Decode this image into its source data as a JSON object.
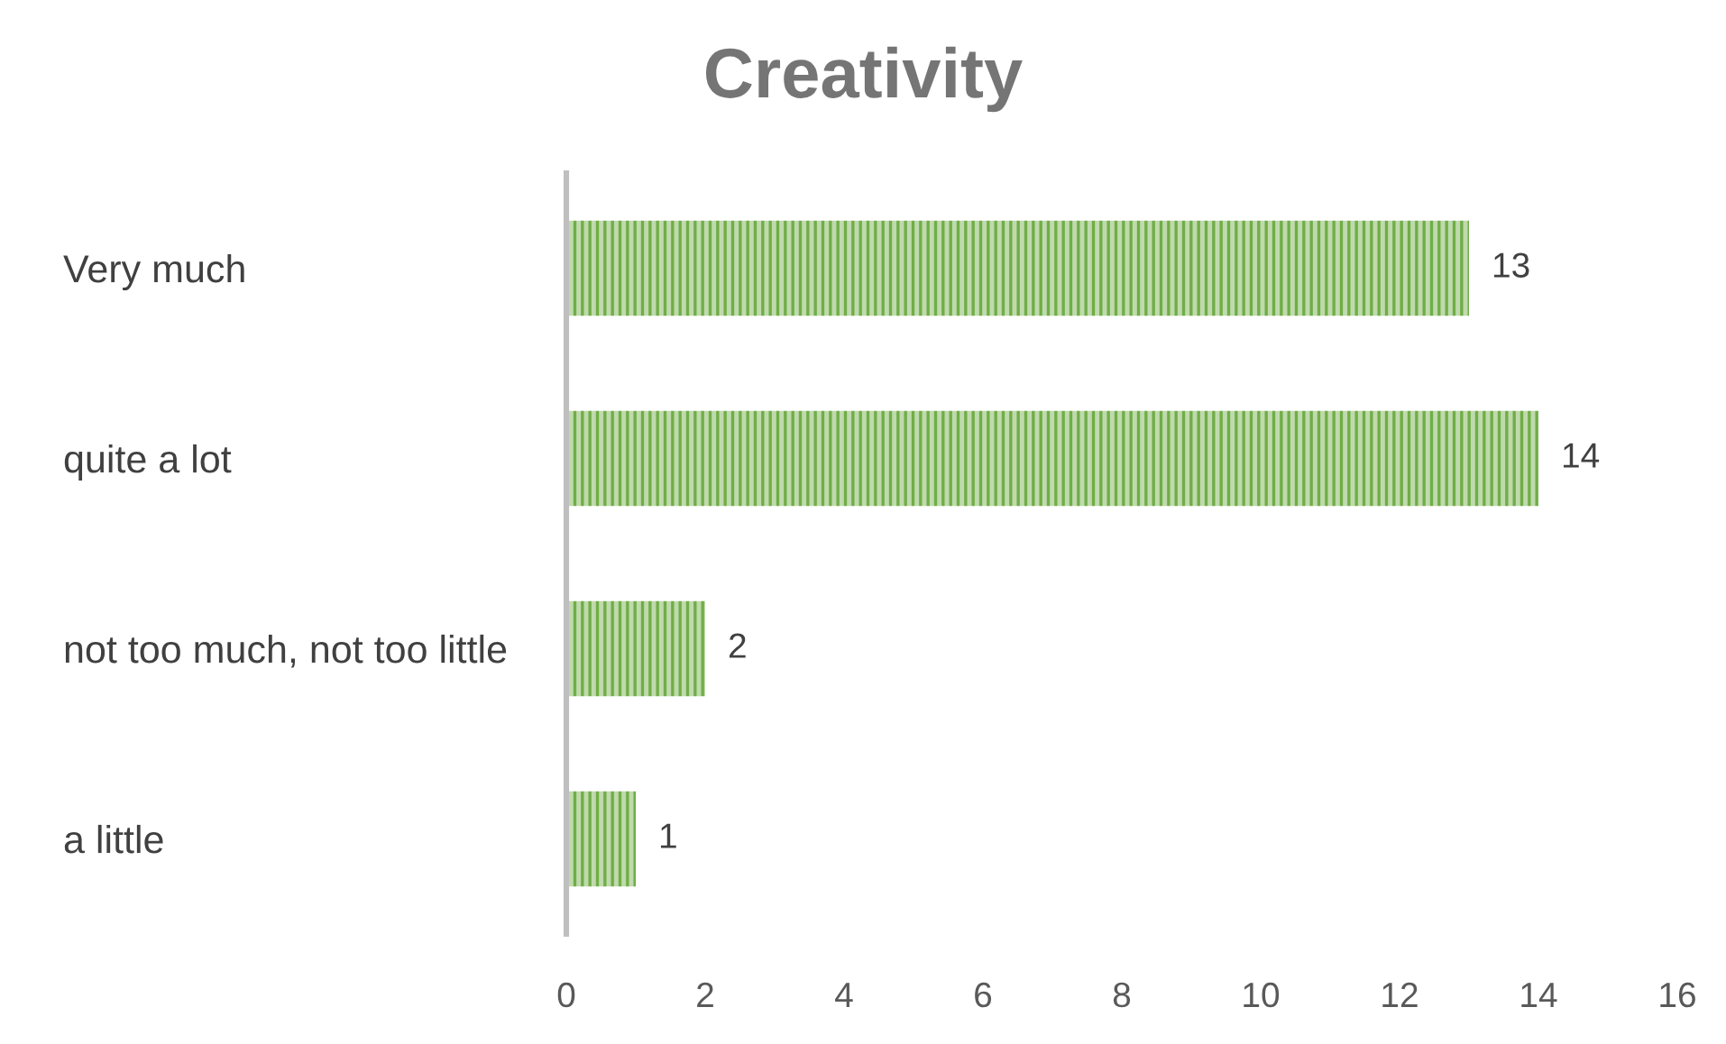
{
  "chart_data": {
    "type": "bar",
    "orientation": "horizontal",
    "title": "Creativity",
    "categories": [
      "Very much",
      "quite a lot",
      "not too much, not too little",
      "a little"
    ],
    "values": [
      13,
      14,
      2,
      1
    ],
    "color": "#70ad47",
    "xlim": [
      0,
      16
    ],
    "xticks": [
      0,
      2,
      4,
      6,
      8,
      10,
      12,
      14,
      16
    ],
    "data_labels": true,
    "grid": false,
    "legend": false
  }
}
